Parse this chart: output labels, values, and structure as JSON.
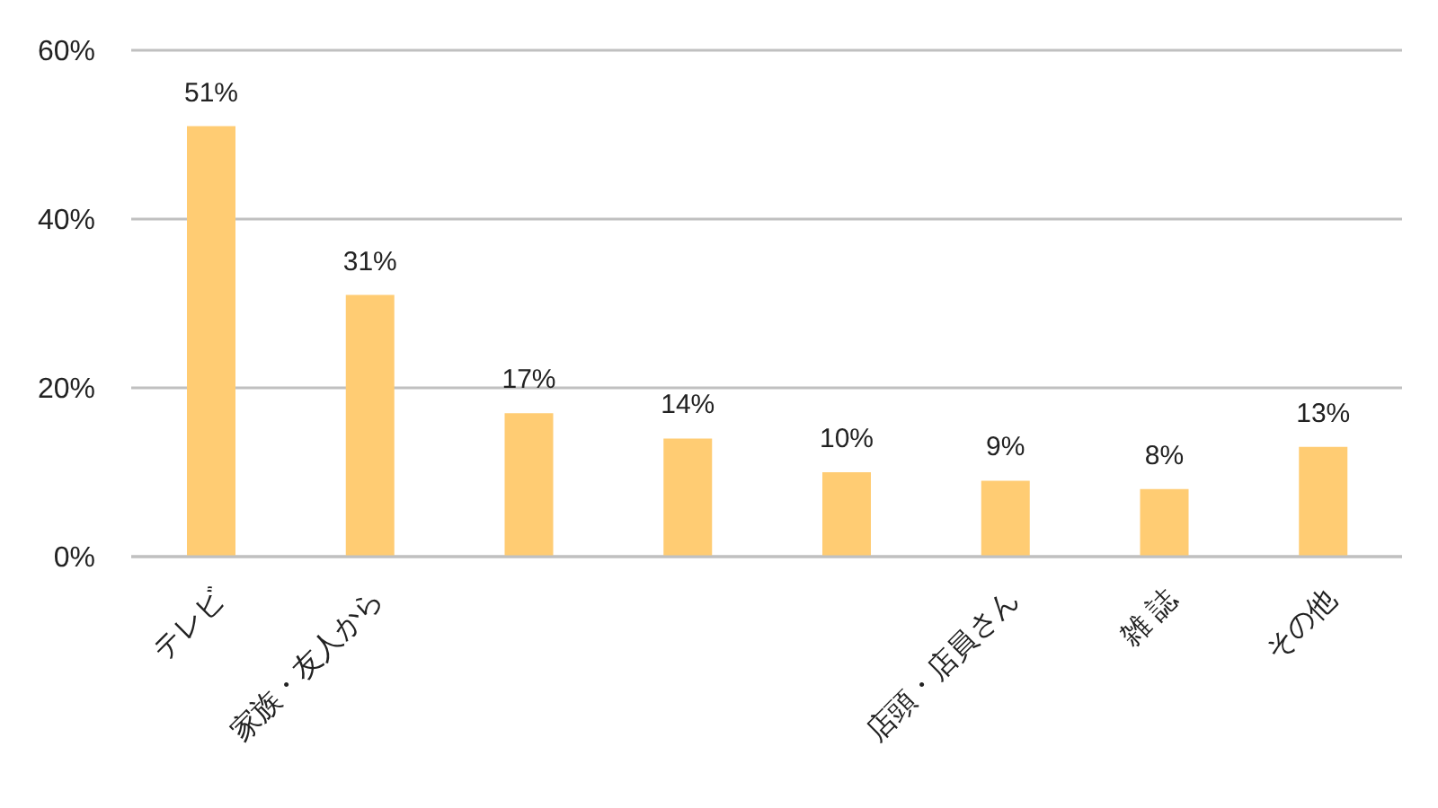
{
  "chart_data": {
    "type": "bar",
    "categories": [
      "テレビ",
      "家族・友人から",
      null,
      null,
      null,
      "店頭・店員さん",
      "雑 誌",
      "その他"
    ],
    "values": [
      51,
      31,
      17,
      14,
      10,
      9,
      8,
      13
    ],
    "value_labels": [
      "51%",
      "31%",
      "17%",
      "14%",
      "10%",
      "9%",
      "8%",
      "13%"
    ],
    "color": "#ffcc73",
    "ylim": [
      0,
      60
    ],
    "yticks": [
      {
        "value": 0,
        "label": "0%"
      },
      {
        "value": 20,
        "label": "20%"
      },
      {
        "value": 40,
        "label": "40%"
      },
      {
        "value": 60,
        "label": "60%"
      }
    ],
    "grid": "y"
  }
}
